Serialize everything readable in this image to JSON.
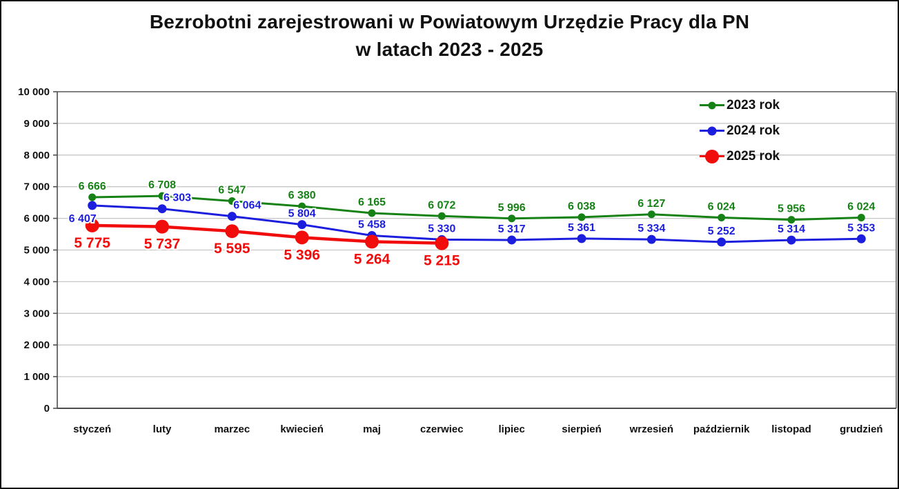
{
  "window": {
    "background": "#ffffff",
    "border_color": "#111111"
  },
  "title": {
    "line1": "Bezrobotni zarejestrowani w Powiatowym Urzędzie Pracy dla PN",
    "line2": "w latach 2023 - 2025"
  },
  "chart_data": {
    "type": "line",
    "title": "Bezrobotni zarejestrowani w Powiatowym Urzędzie Pracy dla PN w latach 2023 - 2025",
    "categories": [
      "styczeń",
      "luty",
      "marzec",
      "kwiecień",
      "maj",
      "czerwiec",
      "lipiec",
      "sierpień",
      "wrzesień",
      "październik",
      "listopad",
      "grudzień"
    ],
    "series": [
      {
        "name": "2023 rok",
        "color": "#168216",
        "line_width": 3,
        "marker_radius": 5.5,
        "label_font_size": 16,
        "label_position": "above",
        "values": [
          6666,
          6708,
          6547,
          6380,
          6165,
          6072,
          5996,
          6038,
          6127,
          6024,
          5956,
          6024
        ],
        "labels": [
          "6 666",
          "6 708",
          "6 547",
          "6 380",
          "6 165",
          "6 072",
          "5 996",
          "6 038",
          "6 127",
          "6 024",
          "5 956",
          "6 024"
        ]
      },
      {
        "name": "2024 rok",
        "color": "#1C1EDE",
        "line_width": 3,
        "marker_radius": 6.5,
        "label_font_size": 16,
        "label_position": "above",
        "values": [
          6407,
          6303,
          6064,
          5804,
          5458,
          5330,
          5317,
          5361,
          5334,
          5252,
          5314,
          5353
        ],
        "labels": [
          "6 407",
          "6 303",
          "6 064",
          "5 804",
          "5 458",
          "5 330",
          "5 317",
          "5 361",
          "5 334",
          "5 252",
          "5 314",
          "5 353"
        ]
      },
      {
        "name": "2025 rok",
        "color": "#F20D0D",
        "line_width": 4.5,
        "marker_radius": 10,
        "label_font_size": 21,
        "label_position": "below",
        "values": [
          5775,
          5737,
          5595,
          5396,
          5264,
          5215
        ],
        "labels": [
          "5 775",
          "5 737",
          "5 595",
          "5 396",
          "5 264",
          "5 215"
        ]
      }
    ],
    "ylim": [
      0,
      10000
    ],
    "ytick_step": 1000,
    "ytick_labels": [
      "0",
      "1 000",
      "2 000",
      "3 000",
      "4 000",
      "5 000",
      "6 000",
      "7 000",
      "8 000",
      "9 000",
      "10 000"
    ],
    "grid": "horizontal",
    "grid_color": "#C6C6C6",
    "frame_color_top_right": "#808080",
    "frame_color_left_bottom": "#4D4D4D",
    "axis_text_color": "#111111",
    "legend_position": "top-right-inside"
  }
}
